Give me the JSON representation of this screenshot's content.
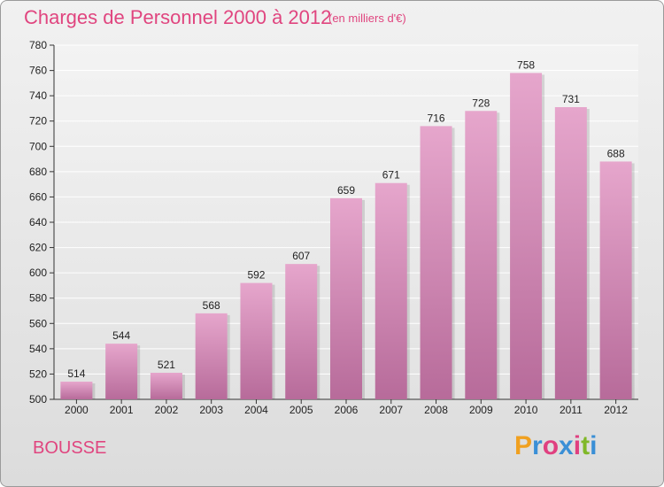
{
  "header": {
    "title": "Charges de Personnel 2000 à 2012",
    "subtitle": "(en milliers d'€)"
  },
  "footer": {
    "commune": "BOUSSE",
    "logo_parts": [
      "P",
      "r",
      "o",
      "x",
      "i",
      "t",
      "i"
    ],
    "logo_colors": [
      "#f0a020",
      "#3a8fd6",
      "#e04080",
      "#3a8fd6",
      "#e04080",
      "#80b828",
      "#3a8fd6"
    ]
  },
  "colors": {
    "accent": "#e0457f",
    "bar_top": "#e6a6cc",
    "bar_bottom": "#b76b9a"
  },
  "chart_data": {
    "type": "bar",
    "title": "Charges de Personnel 2000 à 2012",
    "subtitle": "(en milliers d'€)",
    "categories": [
      "2000",
      "2001",
      "2002",
      "2003",
      "2004",
      "2005",
      "2006",
      "2007",
      "2008",
      "2009",
      "2010",
      "2011",
      "2012"
    ],
    "values": [
      514,
      544,
      521,
      568,
      592,
      607,
      659,
      671,
      716,
      728,
      758,
      731,
      688
    ],
    "xlabel": "",
    "ylabel": "",
    "ylim": [
      500,
      780
    ],
    "yticks": [
      500,
      520,
      540,
      560,
      580,
      600,
      620,
      640,
      660,
      680,
      700,
      720,
      740,
      760,
      780
    ],
    "grid": true
  }
}
